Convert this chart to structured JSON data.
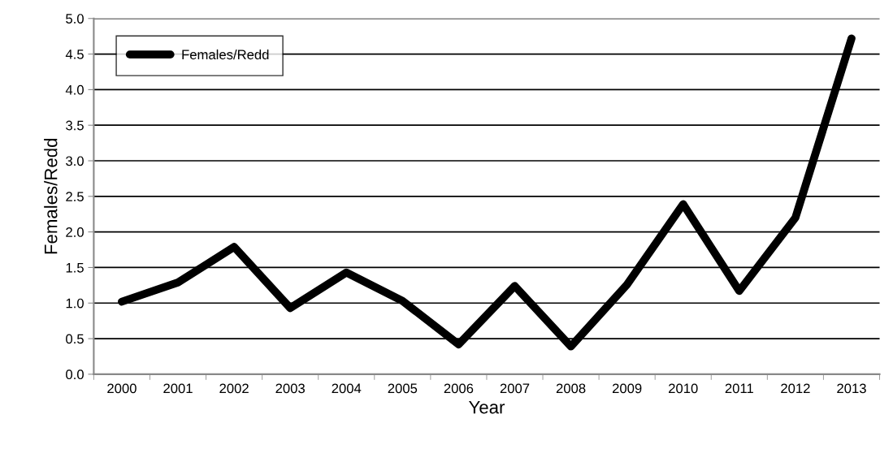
{
  "chart_data": {
    "type": "line",
    "xlabel": "Year",
    "ylabel": "Females/Redd",
    "categories": [
      "2000",
      "2001",
      "2002",
      "2003",
      "2004",
      "2005",
      "2006",
      "2007",
      "2008",
      "2009",
      "2010",
      "2011",
      "2012",
      "2013"
    ],
    "series": [
      {
        "name": "Females/Redd",
        "color": "#000000",
        "values": [
          1.02,
          1.29,
          1.79,
          0.93,
          1.43,
          1.03,
          0.42,
          1.24,
          0.39,
          1.26,
          2.39,
          1.17,
          2.2,
          4.72
        ]
      }
    ],
    "ylim": [
      0,
      5
    ],
    "yticks": [
      {
        "value": 0,
        "label": "0.0"
      },
      {
        "value": 0.5,
        "label": "0.5"
      },
      {
        "value": 1,
        "label": "1.0"
      },
      {
        "value": 1.5,
        "label": "1.5"
      },
      {
        "value": 2,
        "label": "2.0"
      },
      {
        "value": 2.5,
        "label": "2.5"
      },
      {
        "value": 3,
        "label": "3.0"
      },
      {
        "value": 3.5,
        "label": "3.5"
      },
      {
        "value": 4,
        "label": "4.0"
      },
      {
        "value": 4.5,
        "label": "4.5"
      },
      {
        "value": 5,
        "label": "5.0"
      }
    ],
    "grid": "y",
    "legend": "top left",
    "marker": "none",
    "line_style": "solid"
  }
}
